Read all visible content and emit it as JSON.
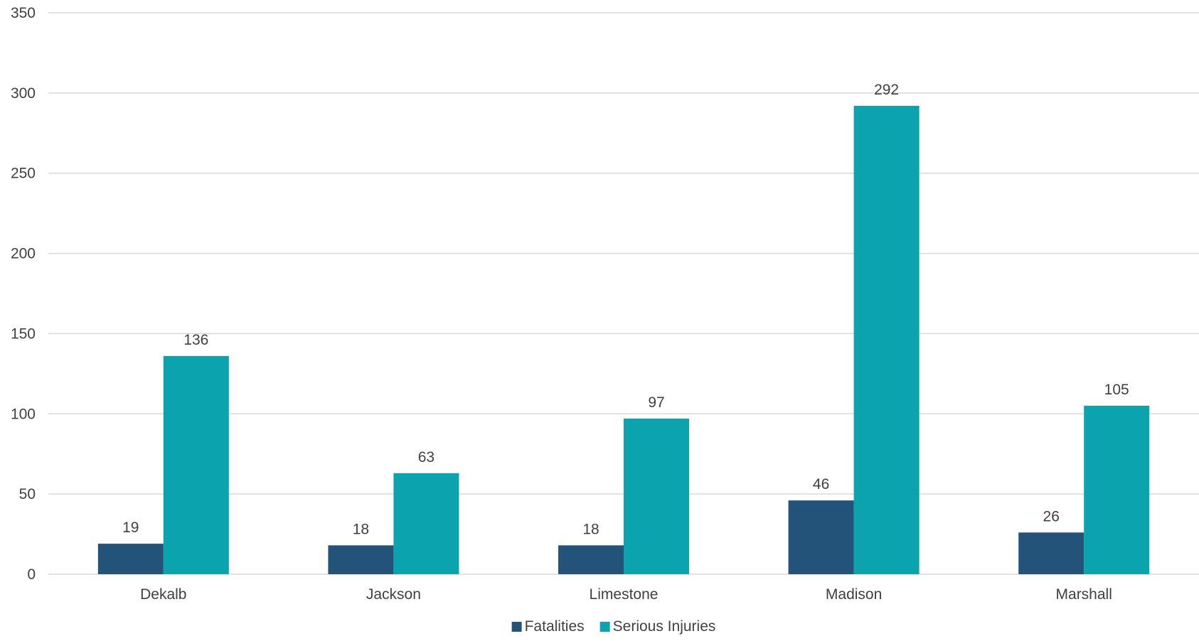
{
  "chart_data": {
    "type": "bar",
    "categories": [
      "Dekalb",
      "Jackson",
      "Limestone",
      "Madison",
      "Marshall"
    ],
    "series": [
      {
        "name": "Fatalities",
        "values": [
          19,
          18,
          18,
          46,
          26
        ],
        "color": "#245379"
      },
      {
        "name": "Serious Injuries",
        "values": [
          136,
          63,
          97,
          292,
          105
        ],
        "color": "#0aa3ae"
      }
    ],
    "ylim": [
      0,
      350
    ],
    "yticks": [
      "0",
      "50",
      "100",
      "150",
      "200",
      "250",
      "300",
      "350"
    ],
    "grid": true,
    "legend_position": "bottom",
    "data_labels": true
  }
}
